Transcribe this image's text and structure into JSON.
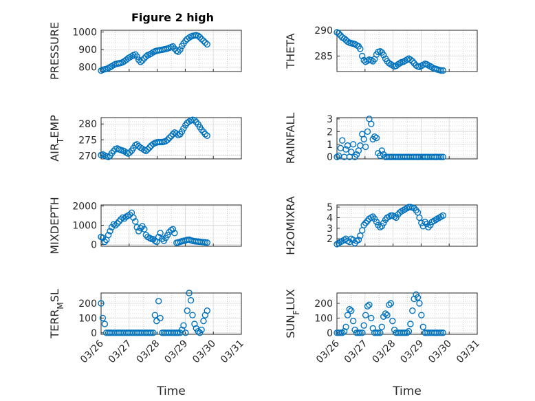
{
  "figure": {
    "title": "Figure 2 high",
    "xlabel": "Time",
    "marker_color": "#0072BD"
  },
  "chart_data": [
    {
      "id": "pressure",
      "type": "scatter",
      "title": "Figure 2 high",
      "ylabel": "PRESSURE",
      "ylim": [
        775,
        1010
      ],
      "yticks": [
        800,
        900,
        1000
      ],
      "xlim": [
        0,
        5
      ],
      "xticks": [],
      "xticklabels": [],
      "x": [
        0.0,
        0.06,
        0.13,
        0.19,
        0.26,
        0.32,
        0.38,
        0.45,
        0.51,
        0.58,
        0.64,
        0.7,
        0.77,
        0.83,
        0.9,
        0.96,
        1.02,
        1.09,
        1.15,
        1.22,
        1.28,
        1.34,
        1.41,
        1.47,
        1.54,
        1.6,
        1.66,
        1.73,
        1.79,
        1.86,
        1.92,
        1.98,
        2.05,
        2.11,
        2.18,
        2.24,
        2.3,
        2.37,
        2.43,
        2.5,
        2.56,
        2.62,
        2.69,
        2.75,
        2.82,
        2.88,
        2.94,
        3.01,
        3.07,
        3.14,
        3.2,
        3.26,
        3.33,
        3.39,
        3.46,
        3.52,
        3.58,
        3.65,
        3.71,
        3.78
      ],
      "y": [
        780,
        785,
        788,
        790,
        795,
        800,
        805,
        812,
        818,
        820,
        822,
        824,
        828,
        834,
        842,
        850,
        856,
        862,
        868,
        872,
        860,
        842,
        830,
        838,
        850,
        860,
        868,
        872,
        878,
        885,
        890,
        893,
        895,
        897,
        899,
        901,
        903,
        906,
        910,
        914,
        918,
        905,
        893,
        888,
        900,
        920,
        935,
        950,
        960,
        968,
        974,
        978,
        980,
        982,
        978,
        970,
        960,
        950,
        940,
        930
      ]
    },
    {
      "id": "theta",
      "type": "scatter",
      "ylabel": "THETA",
      "ylim": [
        282,
        290
      ],
      "yticks": [
        285,
        290
      ],
      "xlim": [
        0,
        5
      ],
      "xticks": [],
      "xticklabels": [],
      "x": [
        0.0,
        0.06,
        0.13,
        0.19,
        0.26,
        0.32,
        0.38,
        0.45,
        0.51,
        0.58,
        0.64,
        0.7,
        0.77,
        0.83,
        0.9,
        0.96,
        1.02,
        1.09,
        1.15,
        1.22,
        1.28,
        1.34,
        1.41,
        1.47,
        1.54,
        1.6,
        1.66,
        1.73,
        1.79,
        1.86,
        1.92,
        1.98,
        2.05,
        2.11,
        2.18,
        2.24,
        2.3,
        2.37,
        2.43,
        2.5,
        2.56,
        2.62,
        2.69,
        2.75,
        2.82,
        2.88,
        2.94,
        3.01,
        3.07,
        3.14,
        3.2,
        3.26,
        3.33,
        3.39,
        3.46,
        3.52,
        3.58,
        3.65,
        3.71,
        3.78
      ],
      "y": [
        289.6,
        289.4,
        289.0,
        288.6,
        288.4,
        288.1,
        287.8,
        287.6,
        287.5,
        287.4,
        287.3,
        287.1,
        286.9,
        286.4,
        285.0,
        284.2,
        283.9,
        284.1,
        284.3,
        284.2,
        284.0,
        284.4,
        285.3,
        285.8,
        285.9,
        285.7,
        285.2,
        284.5,
        284.0,
        283.6,
        283.4,
        283.2,
        283.0,
        283.1,
        283.4,
        283.6,
        283.8,
        283.9,
        284.1,
        284.3,
        284.5,
        284.3,
        284.0,
        283.6,
        283.2,
        283.0,
        282.9,
        283.1,
        283.3,
        283.5,
        283.4,
        283.2,
        283.0,
        282.8,
        282.6,
        282.5,
        282.4,
        282.3,
        282.2,
        282.2
      ]
    },
    {
      "id": "air_temp",
      "type": "scatter",
      "ylabel": "AIR_TEMP",
      "ylim": [
        269,
        282
      ],
      "yticks": [
        270,
        275,
        280
      ],
      "xlim": [
        0,
        5
      ],
      "xticks": [],
      "xticklabels": [],
      "x": [
        0.0,
        0.06,
        0.13,
        0.19,
        0.26,
        0.32,
        0.38,
        0.45,
        0.51,
        0.58,
        0.64,
        0.7,
        0.77,
        0.83,
        0.9,
        0.96,
        1.02,
        1.09,
        1.15,
        1.22,
        1.28,
        1.34,
        1.41,
        1.47,
        1.54,
        1.6,
        1.66,
        1.73,
        1.79,
        1.86,
        1.92,
        1.98,
        2.05,
        2.11,
        2.18,
        2.24,
        2.3,
        2.37,
        2.43,
        2.5,
        2.56,
        2.62,
        2.69,
        2.75,
        2.82,
        2.88,
        2.94,
        3.01,
        3.07,
        3.14,
        3.2,
        3.26,
        3.33,
        3.39,
        3.46,
        3.52,
        3.58,
        3.65,
        3.71,
        3.78
      ],
      "y": [
        270.2,
        270.4,
        270.1,
        269.8,
        269.6,
        270.0,
        270.8,
        271.5,
        272.1,
        272.3,
        272.0,
        271.8,
        271.6,
        271.4,
        271.0,
        270.7,
        271.0,
        271.6,
        272.4,
        273.3,
        273.6,
        273.0,
        272.5,
        272.2,
        271.8,
        271.5,
        272.0,
        272.6,
        273.2,
        273.7,
        274.0,
        274.2,
        274.3,
        274.3,
        274.3,
        274.4,
        274.6,
        275.0,
        275.6,
        276.2,
        276.8,
        277.3,
        277.0,
        276.5,
        276.8,
        277.6,
        278.6,
        279.6,
        280.3,
        280.8,
        281.1,
        281.3,
        281.2,
        280.6,
        279.9,
        279.0,
        278.2,
        277.5,
        276.8,
        276.3
      ]
    },
    {
      "id": "rainfall",
      "type": "scatter",
      "ylabel": "RAINFALL",
      "ylim": [
        -0.15,
        3.1
      ],
      "yticks": [
        0,
        1,
        2,
        3
      ],
      "xlim": [
        0,
        5
      ],
      "xticks": [],
      "xticklabels": [],
      "x": [
        0.0,
        0.06,
        0.13,
        0.19,
        0.26,
        0.32,
        0.38,
        0.45,
        0.51,
        0.58,
        0.64,
        0.7,
        0.77,
        0.83,
        0.9,
        0.96,
        1.02,
        1.09,
        1.15,
        1.22,
        1.28,
        1.34,
        1.41,
        1.47,
        1.54,
        1.6,
        1.66,
        1.73,
        1.79,
        1.86,
        1.92,
        1.98,
        2.05,
        2.11,
        2.18,
        2.24,
        2.3,
        2.37,
        2.43,
        2.5,
        2.56,
        2.62,
        2.69,
        2.75,
        2.82,
        2.88,
        2.94,
        3.01,
        3.07,
        3.14,
        3.2,
        3.26,
        3.33,
        3.39,
        3.46,
        3.52,
        3.58,
        3.65,
        3.71,
        3.78
      ],
      "y": [
        0,
        0.1,
        0.7,
        1.3,
        0,
        0.6,
        0.9,
        0,
        0.4,
        1.0,
        0,
        0.2,
        0.5,
        0.9,
        1.8,
        1.4,
        0.8,
        2.0,
        3.0,
        2.6,
        1.4,
        1.6,
        1.5,
        0.3,
        0.1,
        0.5,
        0.2,
        0,
        0,
        0,
        0,
        0,
        0,
        0,
        0,
        0,
        0,
        0,
        0,
        0,
        0,
        0,
        0,
        0,
        0,
        0,
        0,
        0,
        0,
        0,
        0,
        0,
        0,
        0,
        0,
        0,
        0,
        0,
        0,
        0
      ]
    },
    {
      "id": "mixdepth",
      "type": "scatter",
      "ylabel": "MIXDEPTH",
      "ylim": [
        -80,
        2050
      ],
      "yticks": [
        0,
        1000,
        2000
      ],
      "xlim": [
        0,
        5
      ],
      "xticks": [],
      "xticklabels": [],
      "x": [
        0.0,
        0.06,
        0.13,
        0.19,
        0.26,
        0.32,
        0.38,
        0.45,
        0.51,
        0.58,
        0.64,
        0.7,
        0.77,
        0.83,
        0.9,
        0.96,
        1.02,
        1.09,
        1.15,
        1.22,
        1.28,
        1.34,
        1.41,
        1.47,
        1.54,
        1.6,
        1.66,
        1.73,
        1.79,
        1.86,
        1.92,
        1.98,
        2.05,
        2.11,
        2.18,
        2.24,
        2.3,
        2.37,
        2.43,
        2.5,
        2.56,
        2.62,
        2.69,
        2.75,
        2.82,
        2.88,
        2.94,
        3.01,
        3.07,
        3.14,
        3.2,
        3.26,
        3.33,
        3.39,
        3.46,
        3.52,
        3.58,
        3.65,
        3.71,
        3.78
      ],
      "y": [
        400,
        350,
        150,
        250,
        500,
        700,
        900,
        1050,
        1000,
        1100,
        1200,
        1300,
        1400,
        1350,
        1450,
        1500,
        1550,
        1650,
        1400,
        1200,
        900,
        700,
        850,
        950,
        800,
        500,
        400,
        350,
        300,
        280,
        200,
        150,
        400,
        600,
        300,
        200,
        350,
        500,
        650,
        750,
        800,
        600,
        100,
        120,
        150,
        180,
        200,
        220,
        250,
        260,
        230,
        200,
        180,
        170,
        160,
        150,
        140,
        130,
        120,
        110
      ]
    },
    {
      "id": "h2omixra",
      "type": "scatter",
      "ylabel": "H2OMIXRA",
      "ylim": [
        1.3,
        5.2
      ],
      "yticks": [
        2,
        3,
        4,
        5
      ],
      "xlim": [
        0,
        5
      ],
      "xticks": [],
      "xticklabels": [],
      "x": [
        0.0,
        0.06,
        0.13,
        0.19,
        0.26,
        0.32,
        0.38,
        0.45,
        0.51,
        0.58,
        0.64,
        0.7,
        0.77,
        0.83,
        0.9,
        0.96,
        1.02,
        1.09,
        1.15,
        1.22,
        1.28,
        1.34,
        1.41,
        1.47,
        1.54,
        1.6,
        1.66,
        1.73,
        1.79,
        1.86,
        1.92,
        1.98,
        2.05,
        2.11,
        2.18,
        2.24,
        2.3,
        2.37,
        2.43,
        2.5,
        2.56,
        2.62,
        2.69,
        2.75,
        2.82,
        2.88,
        2.94,
        3.01,
        3.07,
        3.14,
        3.2,
        3.26,
        3.33,
        3.39,
        3.46,
        3.52,
        3.58,
        3.65,
        3.71,
        3.78
      ],
      "y": [
        1.5,
        1.6,
        1.7,
        1.8,
        1.9,
        2.0,
        1.8,
        1.7,
        2.0,
        1.9,
        1.6,
        1.8,
        1.9,
        2.3,
        2.8,
        3.3,
        3.5,
        3.7,
        3.9,
        4.0,
        4.1,
        3.9,
        3.6,
        3.3,
        3.1,
        3.2,
        3.5,
        3.8,
        4.0,
        4.1,
        4.2,
        4.2,
        4.1,
        4.0,
        4.3,
        4.5,
        4.6,
        4.7,
        4.8,
        4.9,
        5.0,
        5.0,
        4.95,
        4.9,
        4.7,
        4.5,
        4.0,
        3.5,
        3.2,
        3.6,
        3.4,
        3.1,
        3.3,
        3.6,
        3.7,
        3.8,
        3.9,
        4.0,
        4.1,
        4.2
      ]
    },
    {
      "id": "terr_msl",
      "type": "scatter",
      "ylabel": "TERR_MSL",
      "ylim": [
        -10,
        270
      ],
      "yticks": [
        0,
        100,
        200
      ],
      "xlim": [
        0,
        5
      ],
      "xticks": [
        0,
        1,
        2,
        3,
        4,
        5
      ],
      "xticklabels": [
        "03/26",
        "03/27",
        "03/28",
        "03/29",
        "03/30",
        "03/31"
      ],
      "xlabel": "Time",
      "x": [
        0.0,
        0.06,
        0.13,
        0.19,
        0.26,
        0.32,
        0.38,
        0.45,
        0.51,
        0.58,
        0.64,
        0.7,
        0.77,
        0.83,
        0.9,
        0.96,
        1.02,
        1.09,
        1.15,
        1.22,
        1.28,
        1.34,
        1.41,
        1.47,
        1.54,
        1.6,
        1.66,
        1.73,
        1.79,
        1.86,
        1.92,
        1.98,
        2.05,
        2.11,
        2.18,
        2.24,
        2.3,
        2.37,
        2.43,
        2.5,
        2.56,
        2.62,
        2.69,
        2.75,
        2.82,
        2.88,
        2.94,
        3.01,
        3.07,
        3.14,
        3.2,
        3.26,
        3.33,
        3.39,
        3.46,
        3.52,
        3.58,
        3.65,
        3.71,
        3.78
      ],
      "y": [
        200,
        100,
        60,
        0,
        0,
        0,
        0,
        0,
        0,
        0,
        0,
        0,
        0,
        0,
        0,
        0,
        0,
        0,
        0,
        0,
        0,
        0,
        0,
        0,
        0,
        0,
        0,
        0,
        0,
        0,
        120,
        80,
        215,
        100,
        0,
        0,
        0,
        0,
        0,
        0,
        0,
        0,
        0,
        0,
        0,
        20,
        50,
        0,
        150,
        270,
        220,
        120,
        60,
        30,
        10,
        0,
        20,
        80,
        120,
        150
      ]
    },
    {
      "id": "sun_flux",
      "type": "scatter",
      "ylabel": "SUN_FLUX",
      "ylim": [
        -10,
        270
      ],
      "yticks": [
        0,
        100,
        200
      ],
      "xlim": [
        0,
        5
      ],
      "xticks": [
        0,
        1,
        2,
        3,
        4,
        5
      ],
      "xticklabels": [
        "03/26",
        "03/27",
        "03/28",
        "03/29",
        "03/30",
        "03/31"
      ],
      "xlabel": "Time",
      "x": [
        0.0,
        0.06,
        0.13,
        0.19,
        0.26,
        0.32,
        0.38,
        0.45,
        0.51,
        0.58,
        0.64,
        0.7,
        0.77,
        0.83,
        0.9,
        0.96,
        1.02,
        1.09,
        1.15,
        1.22,
        1.28,
        1.34,
        1.41,
        1.47,
        1.54,
        1.6,
        1.66,
        1.73,
        1.79,
        1.86,
        1.92,
        1.98,
        2.05,
        2.11,
        2.18,
        2.24,
        2.3,
        2.37,
        2.43,
        2.5,
        2.56,
        2.62,
        2.69,
        2.75,
        2.82,
        2.88,
        2.94,
        3.01,
        3.07,
        3.14,
        3.2,
        3.26,
        3.33,
        3.39,
        3.46,
        3.52,
        3.58,
        3.65,
        3.71,
        3.78
      ],
      "y": [
        0,
        0,
        0,
        0,
        10,
        40,
        120,
        160,
        150,
        80,
        20,
        0,
        0,
        0,
        0,
        50,
        120,
        180,
        190,
        100,
        30,
        0,
        0,
        0,
        0,
        40,
        110,
        130,
        120,
        190,
        200,
        80,
        20,
        0,
        0,
        0,
        0,
        0,
        0,
        0,
        10,
        60,
        150,
        230,
        260,
        240,
        200,
        120,
        40,
        0,
        0,
        0,
        0,
        0,
        0,
        0,
        0,
        0,
        0,
        0
      ]
    }
  ]
}
